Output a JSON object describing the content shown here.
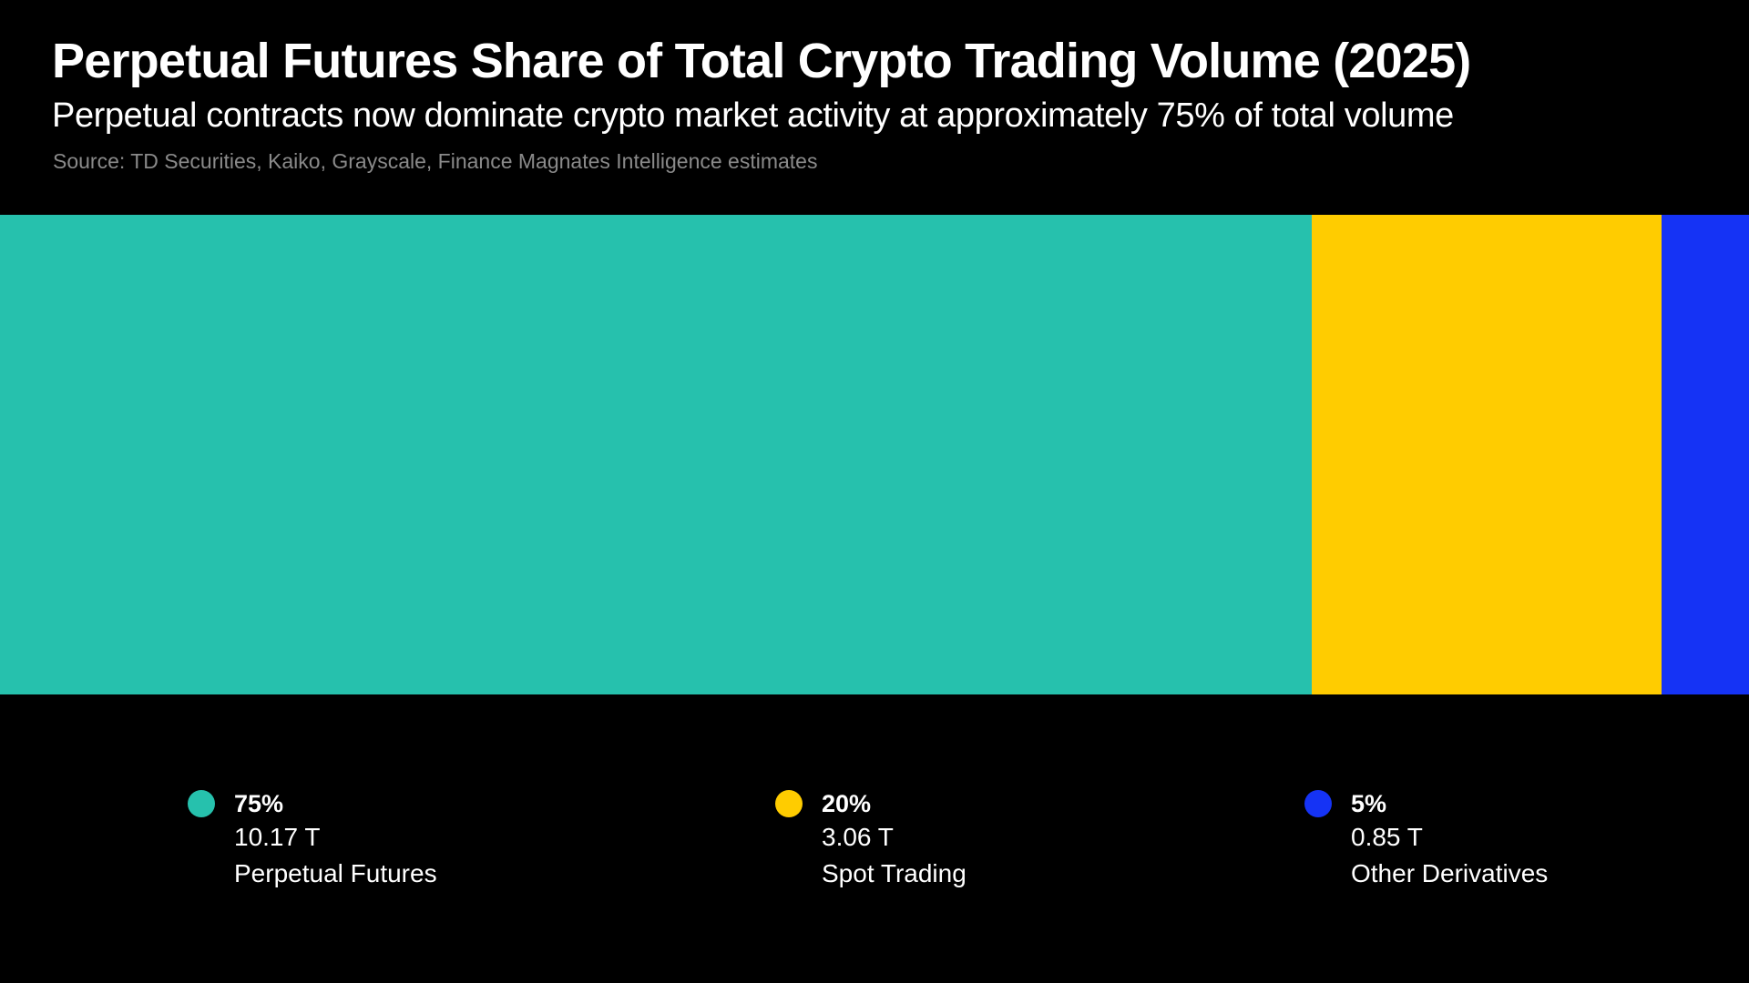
{
  "chart_data": {
    "type": "bar",
    "orientation": "horizontal-stacked-100",
    "title": "Perpetual Futures Share of Total Crypto Trading Volume (2025)",
    "subtitle": "Perpetual contracts now dominate crypto market activity at approximately 75% of total volume",
    "source": "Source: TD Securities, Kaiko, Grayscale, Finance Magnates Intelligence estimates",
    "xlabel": "",
    "ylabel": "",
    "xlim": [
      0,
      100
    ],
    "grid": false,
    "legend_position": "bottom",
    "categories": [
      "Perpetual Futures",
      "Spot Trading",
      "Other Derivatives"
    ],
    "values": [
      75,
      20,
      5
    ],
    "series": [
      {
        "name": "Perpetual Futures",
        "share_pct": 75,
        "share_label": "75%",
        "volume_label": "10.17 T",
        "volume_trillions": 10.17,
        "color": "#26c1ad"
      },
      {
        "name": "Spot Trading",
        "share_pct": 20,
        "share_label": "20%",
        "volume_label": "3.06 T",
        "volume_trillions": 3.06,
        "color": "#ffcc00"
      },
      {
        "name": "Other Derivatives",
        "share_pct": 5,
        "share_label": "5%",
        "volume_label": "0.85 T",
        "volume_trillions": 0.85,
        "color": "#1533f5"
      }
    ]
  },
  "colors": {
    "background": "#000000",
    "text": "#ffffff",
    "source_text": "#8a8a8a"
  }
}
